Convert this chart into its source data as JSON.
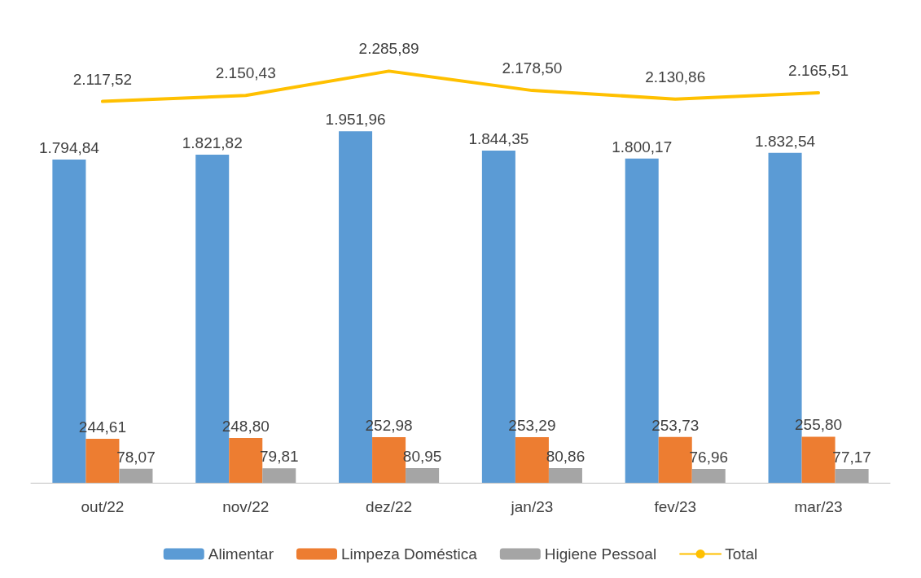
{
  "chart_data": {
    "type": "bar",
    "categories": [
      "out/22",
      "nov/22",
      "dez/22",
      "jan/23",
      "fev/23",
      "mar/23"
    ],
    "series": [
      {
        "name": "Alimentar",
        "color": "#5b9bd5",
        "values": [
          1794.84,
          1821.82,
          1951.96,
          1844.35,
          1800.17,
          1832.54
        ],
        "value_labels": [
          "1.794,84",
          "1.821,82",
          "1.951,96",
          "1.844,35",
          "1.800,17",
          "1.832,54"
        ]
      },
      {
        "name": "Limpeza Doméstica",
        "color": "#ed7d31",
        "values": [
          244.61,
          248.8,
          252.98,
          253.29,
          253.73,
          255.8
        ],
        "value_labels": [
          "244,61",
          "248,80",
          "252,98",
          "253,29",
          "253,73",
          "255,80"
        ]
      },
      {
        "name": "Higiene Pessoal",
        "color": "#a5a5a5",
        "values": [
          78.07,
          79.81,
          80.95,
          80.86,
          76.96,
          77.17
        ],
        "value_labels": [
          "78,07",
          "79,81",
          "80,95",
          "80,86",
          "76,96",
          "77,17"
        ]
      },
      {
        "name": "Total",
        "type": "line",
        "color": "#ffc000",
        "marker": "none",
        "values": [
          2117.52,
          2150.43,
          2285.89,
          2178.5,
          2130.86,
          2165.51
        ],
        "value_labels": [
          "2.117,52",
          "2.150,43",
          "2.285,89",
          "2.178,50",
          "2.130,86",
          "2.165,51"
        ]
      }
    ],
    "grid": false,
    "legend": "bottom"
  }
}
